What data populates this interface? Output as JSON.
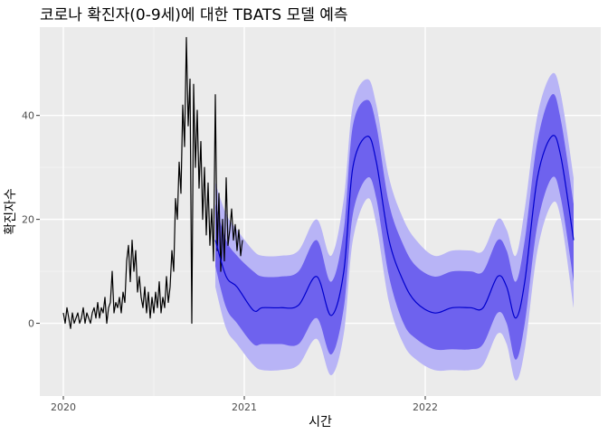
{
  "chart_data": {
    "type": "line",
    "title": "코로나 확진자(0-9세)에 대한 TBATS 모델 예측",
    "xlabel": "시간",
    "ylabel": "확진자수",
    "x_ticks": [
      {
        "value": 2020,
        "label": "2020"
      },
      {
        "value": 2021,
        "label": "2021"
      },
      {
        "value": 2022,
        "label": "2022"
      }
    ],
    "y_ticks": [
      0,
      20,
      40
    ],
    "xlim": [
      2019.87,
      2022.97
    ],
    "ylim": [
      -14,
      57
    ],
    "grid": true,
    "legend": "none",
    "colors": {
      "panel": "#ebebeb",
      "grid_major": "#ffffff",
      "grid_minor": "#f5f5f5",
      "actual": "#000000",
      "forecast": "#0000cd",
      "band_80": "#6e62ee",
      "band_95": "#b8b4f6"
    },
    "series": [
      {
        "role": "actual",
        "points": [
          [
            2020.0,
            2
          ],
          [
            2020.01,
            0
          ],
          [
            2020.02,
            3
          ],
          [
            2020.03,
            1
          ],
          [
            2020.04,
            -1
          ],
          [
            2020.05,
            2
          ],
          [
            2020.06,
            0
          ],
          [
            2020.07,
            1
          ],
          [
            2020.08,
            2
          ],
          [
            2020.09,
            0
          ],
          [
            2020.1,
            1
          ],
          [
            2020.11,
            3
          ],
          [
            2020.12,
            0
          ],
          [
            2020.13,
            2
          ],
          [
            2020.14,
            1
          ],
          [
            2020.15,
            0
          ],
          [
            2020.16,
            2
          ],
          [
            2020.17,
            3
          ],
          [
            2020.18,
            1
          ],
          [
            2020.19,
            4
          ],
          [
            2020.2,
            1
          ],
          [
            2020.21,
            3
          ],
          [
            2020.22,
            2
          ],
          [
            2020.23,
            5
          ],
          [
            2020.24,
            0
          ],
          [
            2020.25,
            3
          ],
          [
            2020.26,
            4
          ],
          [
            2020.27,
            10
          ],
          [
            2020.28,
            2
          ],
          [
            2020.29,
            4
          ],
          [
            2020.3,
            3
          ],
          [
            2020.31,
            5
          ],
          [
            2020.32,
            2
          ],
          [
            2020.33,
            6
          ],
          [
            2020.34,
            4
          ],
          [
            2020.35,
            12
          ],
          [
            2020.36,
            15
          ],
          [
            2020.37,
            8
          ],
          [
            2020.38,
            16
          ],
          [
            2020.39,
            10
          ],
          [
            2020.4,
            14
          ],
          [
            2020.41,
            6
          ],
          [
            2020.42,
            9
          ],
          [
            2020.43,
            5
          ],
          [
            2020.44,
            3
          ],
          [
            2020.45,
            7
          ],
          [
            2020.46,
            2
          ],
          [
            2020.47,
            6
          ],
          [
            2020.48,
            1
          ],
          [
            2020.49,
            5
          ],
          [
            2020.5,
            2
          ],
          [
            2020.51,
            6
          ],
          [
            2020.52,
            3
          ],
          [
            2020.53,
            8
          ],
          [
            2020.54,
            2
          ],
          [
            2020.55,
            5
          ],
          [
            2020.56,
            3
          ],
          [
            2020.57,
            9
          ],
          [
            2020.58,
            4
          ],
          [
            2020.59,
            7
          ],
          [
            2020.6,
            14
          ],
          [
            2020.61,
            10
          ],
          [
            2020.62,
            24
          ],
          [
            2020.63,
            20
          ],
          [
            2020.64,
            31
          ],
          [
            2020.65,
            25
          ],
          [
            2020.66,
            42
          ],
          [
            2020.67,
            34
          ],
          [
            2020.68,
            55
          ],
          [
            2020.69,
            38
          ],
          [
            2020.7,
            47
          ],
          [
            2020.71,
            0
          ],
          [
            2020.72,
            46
          ],
          [
            2020.73,
            30
          ],
          [
            2020.74,
            41
          ],
          [
            2020.75,
            26
          ],
          [
            2020.76,
            35
          ],
          [
            2020.77,
            20
          ],
          [
            2020.78,
            30
          ],
          [
            2020.79,
            17
          ],
          [
            2020.8,
            27
          ],
          [
            2020.81,
            15
          ],
          [
            2020.82,
            22
          ],
          [
            2020.83,
            12
          ],
          [
            2020.84,
            44
          ],
          [
            2020.85,
            14
          ],
          [
            2020.86,
            25
          ],
          [
            2020.87,
            10
          ],
          [
            2020.88,
            20
          ],
          [
            2020.89,
            12
          ],
          [
            2020.9,
            28
          ],
          [
            2020.91,
            15
          ],
          [
            2020.92,
            18
          ],
          [
            2020.93,
            22
          ],
          [
            2020.94,
            16
          ],
          [
            2020.95,
            19
          ],
          [
            2020.96,
            14
          ],
          [
            2020.97,
            18
          ],
          [
            2020.98,
            13
          ],
          [
            2020.99,
            16
          ]
        ]
      },
      {
        "role": "forecast",
        "points": [
          [
            2020.84,
            16
          ],
          [
            2020.9,
            9
          ],
          [
            2020.96,
            7
          ],
          [
            2021.05,
            2.5
          ],
          [
            2021.1,
            3
          ],
          [
            2021.2,
            3
          ],
          [
            2021.3,
            3.5
          ],
          [
            2021.4,
            9
          ],
          [
            2021.48,
            1.5
          ],
          [
            2021.55,
            10
          ],
          [
            2021.6,
            30
          ],
          [
            2021.68,
            36
          ],
          [
            2021.73,
            31
          ],
          [
            2021.8,
            16
          ],
          [
            2021.88,
            8
          ],
          [
            2021.95,
            4
          ],
          [
            2022.05,
            2
          ],
          [
            2022.15,
            3
          ],
          [
            2022.25,
            3
          ],
          [
            2022.32,
            3
          ],
          [
            2022.4,
            9
          ],
          [
            2022.45,
            7
          ],
          [
            2022.5,
            1
          ],
          [
            2022.55,
            8
          ],
          [
            2022.62,
            28
          ],
          [
            2022.7,
            36
          ],
          [
            2022.75,
            32
          ],
          [
            2022.82,
            16
          ]
        ]
      },
      {
        "role": "band_95",
        "upper": [
          [
            2020.84,
            27
          ],
          [
            2020.9,
            21
          ],
          [
            2020.96,
            18
          ],
          [
            2021.05,
            14
          ],
          [
            2021.1,
            13
          ],
          [
            2021.2,
            13
          ],
          [
            2021.3,
            14
          ],
          [
            2021.4,
            20
          ],
          [
            2021.48,
            13
          ],
          [
            2021.55,
            24
          ],
          [
            2021.6,
            42
          ],
          [
            2021.68,
            47
          ],
          [
            2021.73,
            42
          ],
          [
            2021.8,
            28
          ],
          [
            2021.88,
            20
          ],
          [
            2021.95,
            16
          ],
          [
            2022.05,
            13
          ],
          [
            2022.15,
            14
          ],
          [
            2022.25,
            14
          ],
          [
            2022.32,
            14
          ],
          [
            2022.4,
            20
          ],
          [
            2022.45,
            18
          ],
          [
            2022.5,
            13
          ],
          [
            2022.55,
            22
          ],
          [
            2022.62,
            40
          ],
          [
            2022.7,
            48
          ],
          [
            2022.75,
            44
          ],
          [
            2022.82,
            28
          ]
        ],
        "lower": [
          [
            2020.84,
            7
          ],
          [
            2020.9,
            -1
          ],
          [
            2020.96,
            -4
          ],
          [
            2021.05,
            -8
          ],
          [
            2021.1,
            -9
          ],
          [
            2021.2,
            -9
          ],
          [
            2021.3,
            -8
          ],
          [
            2021.4,
            -3
          ],
          [
            2021.48,
            -10
          ],
          [
            2021.55,
            -2
          ],
          [
            2021.6,
            16
          ],
          [
            2021.68,
            24
          ],
          [
            2021.73,
            19
          ],
          [
            2021.8,
            4
          ],
          [
            2021.88,
            -4
          ],
          [
            2021.95,
            -7
          ],
          [
            2022.05,
            -9
          ],
          [
            2022.15,
            -9
          ],
          [
            2022.25,
            -9
          ],
          [
            2022.32,
            -8
          ],
          [
            2022.4,
            -2
          ],
          [
            2022.45,
            -4
          ],
          [
            2022.5,
            -11
          ],
          [
            2022.55,
            -5
          ],
          [
            2022.62,
            14
          ],
          [
            2022.7,
            23
          ],
          [
            2022.75,
            20
          ],
          [
            2022.82,
            3
          ]
        ]
      },
      {
        "role": "band_80",
        "upper": [
          [
            2020.84,
            23
          ],
          [
            2020.9,
            16
          ],
          [
            2020.96,
            13
          ],
          [
            2021.05,
            10
          ],
          [
            2021.1,
            9
          ],
          [
            2021.2,
            9
          ],
          [
            2021.3,
            10
          ],
          [
            2021.4,
            16
          ],
          [
            2021.48,
            8
          ],
          [
            2021.55,
            18
          ],
          [
            2021.6,
            38
          ],
          [
            2021.68,
            43
          ],
          [
            2021.73,
            38
          ],
          [
            2021.8,
            23
          ],
          [
            2021.88,
            15
          ],
          [
            2021.95,
            11
          ],
          [
            2022.05,
            9
          ],
          [
            2022.15,
            10
          ],
          [
            2022.25,
            10
          ],
          [
            2022.32,
            10
          ],
          [
            2022.4,
            16
          ],
          [
            2022.45,
            14
          ],
          [
            2022.5,
            8
          ],
          [
            2022.55,
            16
          ],
          [
            2022.62,
            35
          ],
          [
            2022.7,
            44
          ],
          [
            2022.75,
            39
          ],
          [
            2022.82,
            23
          ]
        ],
        "lower": [
          [
            2020.84,
            11
          ],
          [
            2020.9,
            3
          ],
          [
            2020.96,
            0
          ],
          [
            2021.05,
            -4
          ],
          [
            2021.1,
            -4
          ],
          [
            2021.2,
            -4
          ],
          [
            2021.3,
            -4
          ],
          [
            2021.4,
            1
          ],
          [
            2021.48,
            -6
          ],
          [
            2021.55,
            3
          ],
          [
            2021.6,
            21
          ],
          [
            2021.68,
            28
          ],
          [
            2021.73,
            24
          ],
          [
            2021.8,
            9
          ],
          [
            2021.88,
            0
          ],
          [
            2021.95,
            -3
          ],
          [
            2022.05,
            -5
          ],
          [
            2022.15,
            -5
          ],
          [
            2022.25,
            -5
          ],
          [
            2022.32,
            -4
          ],
          [
            2022.4,
            2
          ],
          [
            2022.45,
            0
          ],
          [
            2022.5,
            -7
          ],
          [
            2022.55,
            0
          ],
          [
            2022.62,
            19
          ],
          [
            2022.7,
            28
          ],
          [
            2022.75,
            24
          ],
          [
            2022.82,
            8
          ]
        ]
      }
    ]
  }
}
